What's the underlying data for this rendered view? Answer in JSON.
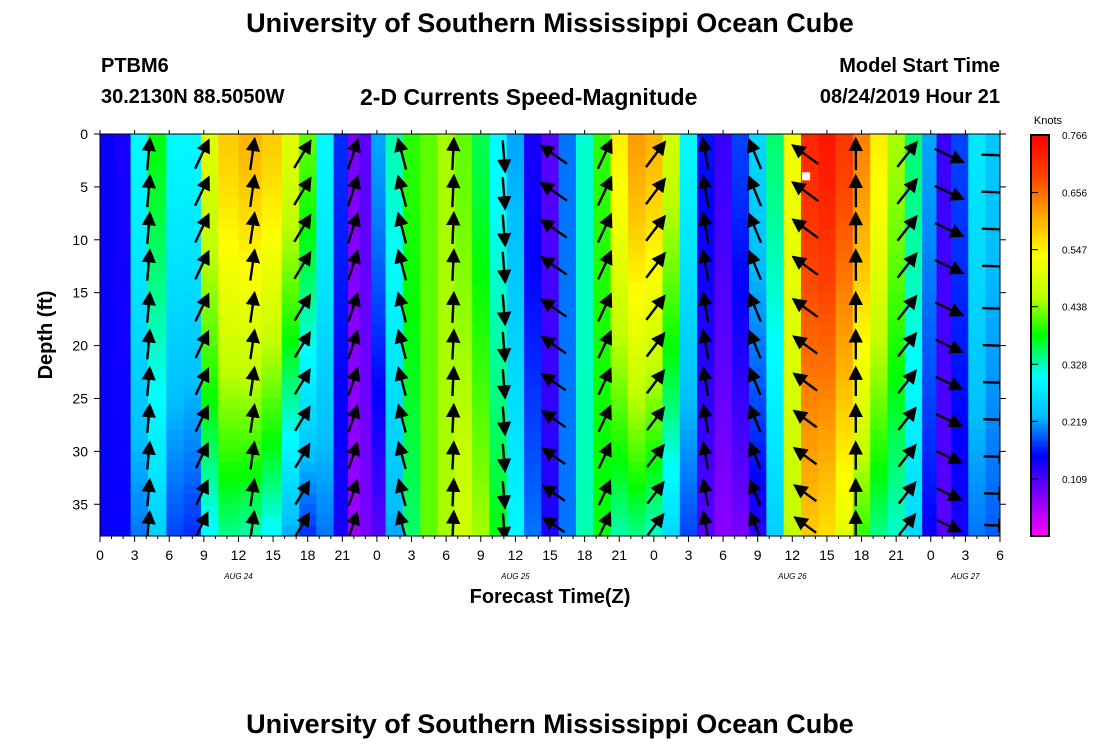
{
  "header": {
    "title": "University of Southern Mississippi Ocean Cube",
    "station": "PTBM6",
    "coordinates": "30.2130N 88.5050W",
    "subtitle": "2-D Currents Speed-Magnitude",
    "model_label": "Model Start Time",
    "model_time": "08/24/2019 Hour 21"
  },
  "footer": {
    "title": "University of Southern Mississippi Ocean Cube"
  },
  "chart_data": {
    "type": "heatmap",
    "title": "2-D Currents Speed-Magnitude",
    "xlabel": "Forecast Time(Z)",
    "ylabel": "Depth (ft)",
    "xlim": [
      0,
      78
    ],
    "ylim": [
      38,
      0
    ],
    "x_ticks": [
      0,
      3,
      6,
      9,
      12,
      15,
      18,
      21,
      24,
      27,
      30,
      33,
      36,
      39,
      42,
      45,
      48,
      51,
      54,
      57,
      60,
      63,
      66,
      69,
      72,
      75,
      78
    ],
    "x_tick_labels": [
      "0",
      "3",
      "6",
      "9",
      "12",
      "15",
      "18",
      "21",
      "0",
      "3",
      "6",
      "9",
      "12",
      "15",
      "18",
      "21",
      "0",
      "3",
      "6",
      "9",
      "12",
      "15",
      "18",
      "21",
      "0",
      "3",
      "6"
    ],
    "y_ticks": [
      0,
      5,
      10,
      15,
      20,
      25,
      30,
      35
    ],
    "y_tick_labels": [
      "0",
      "5",
      "10",
      "15",
      "20",
      "25",
      "30",
      "35"
    ],
    "date_labels": [
      {
        "label": "AUG 24",
        "x": 12
      },
      {
        "label": "AUG 25",
        "x": 36
      },
      {
        "label": "AUG 26",
        "x": 60
      },
      {
        "label": "AUG 27",
        "x": 75
      }
    ],
    "colorbar": {
      "unit": "Knots",
      "min": 0.0,
      "max": 0.766,
      "tick_values": [
        0.109,
        0.219,
        0.328,
        0.438,
        0.547,
        0.656,
        0.766
      ],
      "tick_labels": [
        "0.109",
        "0.219",
        "0.328",
        "0.438",
        "0.547",
        "0.656",
        "0.766"
      ],
      "colors": [
        "#ff00ff",
        "#8000ff",
        "#0000ff",
        "#00bfff",
        "#00ffff",
        "#00ff00",
        "#c0ff00",
        "#ffff00",
        "#ffa500",
        "#ff4000",
        "#ff0000"
      ]
    },
    "speed_profiles": [
      {
        "x": 0.5,
        "top": 0.15,
        "bottom": 0.15
      },
      {
        "x": 2,
        "top": 0.14,
        "bottom": 0.15
      },
      {
        "x": 3.3,
        "top": 0.3,
        "bottom": 0.2
      },
      {
        "x": 5,
        "top": 0.38,
        "bottom": 0.25
      },
      {
        "x": 6.5,
        "top": 0.3,
        "bottom": 0.18
      },
      {
        "x": 8,
        "top": 0.3,
        "bottom": 0.17
      },
      {
        "x": 9.5,
        "top": 0.5,
        "bottom": 0.3
      },
      {
        "x": 11,
        "top": 0.58,
        "bottom": 0.34
      },
      {
        "x": 13,
        "top": 0.6,
        "bottom": 0.33
      },
      {
        "x": 15,
        "top": 0.58,
        "bottom": 0.3
      },
      {
        "x": 16.5,
        "top": 0.5,
        "bottom": 0.22
      },
      {
        "x": 18,
        "top": 0.42,
        "bottom": 0.17
      },
      {
        "x": 19.5,
        "top": 0.3,
        "bottom": 0.2
      },
      {
        "x": 21,
        "top": 0.17,
        "bottom": 0.14
      },
      {
        "x": 22,
        "top": 0.08,
        "bottom": 0.06
      },
      {
        "x": 23,
        "top": 0.1,
        "bottom": 0.08
      },
      {
        "x": 24,
        "top": 0.22,
        "bottom": 0.1
      },
      {
        "x": 25.5,
        "top": 0.33,
        "bottom": 0.22
      },
      {
        "x": 27,
        "top": 0.4,
        "bottom": 0.35
      },
      {
        "x": 28.5,
        "top": 0.42,
        "bottom": 0.42
      },
      {
        "x": 30,
        "top": 0.45,
        "bottom": 0.45
      },
      {
        "x": 31.5,
        "top": 0.42,
        "bottom": 0.48
      },
      {
        "x": 33,
        "top": 0.36,
        "bottom": 0.45
      },
      {
        "x": 34.5,
        "top": 0.3,
        "bottom": 0.38
      },
      {
        "x": 36,
        "top": 0.22,
        "bottom": 0.3
      },
      {
        "x": 37.5,
        "top": 0.14,
        "bottom": 0.2
      },
      {
        "x": 39,
        "top": 0.1,
        "bottom": 0.14
      },
      {
        "x": 40.5,
        "top": 0.2,
        "bottom": 0.2
      },
      {
        "x": 42,
        "top": 0.32,
        "bottom": 0.33
      },
      {
        "x": 43.5,
        "top": 0.4,
        "bottom": 0.38
      },
      {
        "x": 45,
        "top": 0.55,
        "bottom": 0.33
      },
      {
        "x": 46.5,
        "top": 0.62,
        "bottom": 0.34
      },
      {
        "x": 48,
        "top": 0.6,
        "bottom": 0.32
      },
      {
        "x": 49.5,
        "top": 0.48,
        "bottom": 0.26
      },
      {
        "x": 51,
        "top": 0.3,
        "bottom": 0.18
      },
      {
        "x": 52.5,
        "top": 0.16,
        "bottom": 0.1
      },
      {
        "x": 54,
        "top": 0.12,
        "bottom": 0.07
      },
      {
        "x": 55.5,
        "top": 0.18,
        "bottom": 0.08
      },
      {
        "x": 57,
        "top": 0.26,
        "bottom": 0.13
      },
      {
        "x": 58.5,
        "top": 0.35,
        "bottom": 0.25
      },
      {
        "x": 60,
        "top": 0.52,
        "bottom": 0.46
      },
      {
        "x": 61.5,
        "top": 0.72,
        "bottom": 0.58
      },
      {
        "x": 63,
        "top": 0.74,
        "bottom": 0.56
      },
      {
        "x": 64.5,
        "top": 0.7,
        "bottom": 0.5
      },
      {
        "x": 66,
        "top": 0.64,
        "bottom": 0.4
      },
      {
        "x": 67.5,
        "top": 0.55,
        "bottom": 0.34
      },
      {
        "x": 69,
        "top": 0.45,
        "bottom": 0.32
      },
      {
        "x": 70.5,
        "top": 0.35,
        "bottom": 0.26
      },
      {
        "x": 72,
        "top": 0.22,
        "bottom": 0.15
      },
      {
        "x": 73,
        "top": 0.12,
        "bottom": 0.1
      },
      {
        "x": 74.5,
        "top": 0.18,
        "bottom": 0.14
      },
      {
        "x": 76,
        "top": 0.28,
        "bottom": 0.2
      },
      {
        "x": 77.5,
        "top": 0.24,
        "bottom": 0.19
      }
    ],
    "vector_times": [
      4.2,
      8.8,
      13.2,
      17.5,
      21.9,
      26.2,
      30.6,
      35.0,
      39.4,
      43.7,
      48.1,
      52.5,
      56.8,
      61.2,
      65.5,
      69.9,
      73.5,
      77.7
    ],
    "vector_depths": [
      2,
      5.5,
      9,
      12.5,
      16.5,
      20,
      23.5,
      27,
      30.5,
      34,
      37
    ],
    "vector_directions": [
      10,
      8,
      5,
      5,
      20,
      28,
      20,
      10,
      8,
      25,
      35,
      28,
      25,
      20,
      10,
      5,
      340,
      350,
      5,
      0,
      355,
      175,
      180,
      175,
      350,
      5,
      15,
      45,
      160,
      35,
      355,
      350,
      350,
      340,
      340,
      330,
      350,
      300,
      340,
      355,
      5,
      10,
      35,
      60,
      115,
      115,
      100,
      90
    ],
    "vector_depth_factors": [
      1.0,
      1.0,
      0.98,
      0.97,
      0.95,
      0.92,
      0.9,
      0.88,
      0.86,
      0.84,
      0.82
    ],
    "missing_cell": {
      "x": 61.2,
      "depth": 4
    }
  }
}
